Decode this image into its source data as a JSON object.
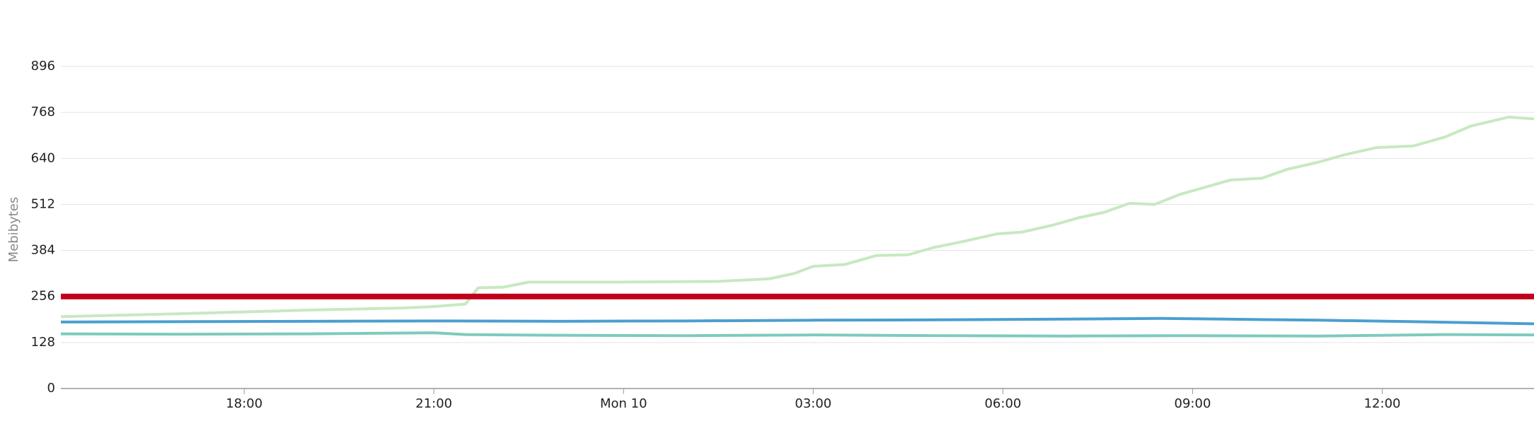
{
  "chart_data": {
    "type": "line",
    "ylabel": "Mebibytes",
    "ylim": [
      0,
      896
    ],
    "yticks": [
      0,
      128,
      256,
      384,
      512,
      640,
      768,
      896
    ],
    "xlim": [
      15.1,
      38.4
    ],
    "xticks": [
      {
        "value": 18,
        "label": "18:00"
      },
      {
        "value": 21,
        "label": "21:00"
      },
      {
        "value": 24,
        "label": "Mon 10"
      },
      {
        "value": 27,
        "label": "03:00"
      },
      {
        "value": 30,
        "label": "06:00"
      },
      {
        "value": 33,
        "label": "09:00"
      },
      {
        "value": 36,
        "label": "12:00"
      }
    ],
    "grid": true,
    "series": [
      {
        "color": "#c7e9c0",
        "x": [
          15.1,
          17,
          19,
          20.5,
          21,
          21.5,
          21.7,
          22.1,
          22.5,
          24,
          25.5,
          26.3,
          26.7,
          27,
          27.5,
          28,
          28.5,
          28.9,
          29.4,
          29.9,
          30.3,
          30.8,
          31.2,
          31.6,
          32,
          32.4,
          32.8,
          33.2,
          33.6,
          34.1,
          34.5,
          35,
          35.4,
          35.9,
          36.5,
          37,
          37.4,
          38,
          38.4
        ],
        "values": [
          200,
          208,
          218,
          224,
          228,
          235,
          280,
          282,
          296,
          296,
          298,
          305,
          320,
          340,
          345,
          370,
          372,
          392,
          410,
          430,
          435,
          455,
          475,
          490,
          515,
          512,
          540,
          560,
          580,
          585,
          610,
          630,
          650,
          670,
          675,
          700,
          730,
          755,
          750
        ]
      },
      {
        "color": "#4a9fd0",
        "x": [
          15.1,
          17,
          19,
          21,
          23,
          25,
          27,
          29,
          31,
          32.5,
          33.5,
          35,
          36.5,
          38.4
        ],
        "values": [
          185,
          186,
          187,
          188,
          187,
          188,
          190,
          191,
          193,
          195,
          193,
          190,
          186,
          180
        ]
      },
      {
        "color": "#7ccbbd",
        "x": [
          15.1,
          17,
          19,
          21,
          21.5,
          23,
          25,
          27,
          29,
          31,
          33,
          35,
          37,
          38.4
        ],
        "values": [
          152,
          151,
          152,
          155,
          150,
          148,
          147,
          149,
          147,
          146,
          147,
          146,
          150,
          149
        ]
      },
      {
        "color": "#c0001a",
        "x": [
          15.1,
          38.4
        ],
        "values": [
          256,
          256
        ]
      }
    ]
  }
}
